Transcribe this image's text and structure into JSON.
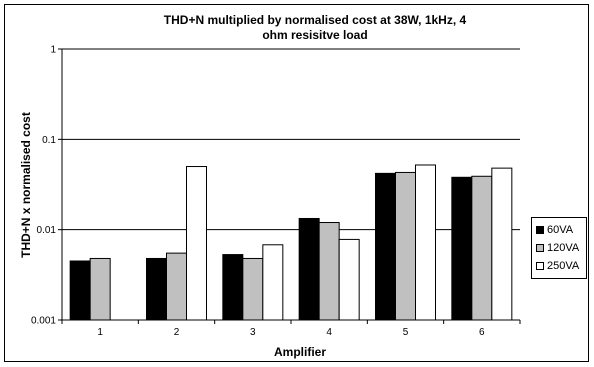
{
  "chart_data": {
    "type": "bar",
    "title": "THD+N multiplied by normalised cost at 38W, 1kHz, 4 ohm resisitve load",
    "xlabel": "Amplifier",
    "ylabel": "THD+N x normalised cost",
    "yscale": "log",
    "ylim": [
      0.001,
      1
    ],
    "yticks": [
      {
        "value": 1,
        "label": "1"
      },
      {
        "value": 0.1,
        "label": "0.1"
      },
      {
        "value": 0.01,
        "label": "0.01"
      },
      {
        "value": 0.001,
        "label": "0.001"
      }
    ],
    "grid": true,
    "legend_position": "right",
    "categories": [
      "1",
      "2",
      "3",
      "4",
      "5",
      "6"
    ],
    "series": [
      {
        "name": "60VA",
        "color": "#000000",
        "values": [
          0.0045,
          0.0048,
          0.0053,
          0.0133,
          0.042,
          0.038
        ]
      },
      {
        "name": "120VA",
        "color": "#c0c0c0",
        "values": [
          0.0048,
          0.0055,
          0.0048,
          0.012,
          0.043,
          0.039
        ]
      },
      {
        "name": "250VA",
        "color": "#ffffff",
        "values": [
          null,
          0.05,
          0.0068,
          0.0078,
          0.052,
          0.048
        ]
      }
    ]
  }
}
